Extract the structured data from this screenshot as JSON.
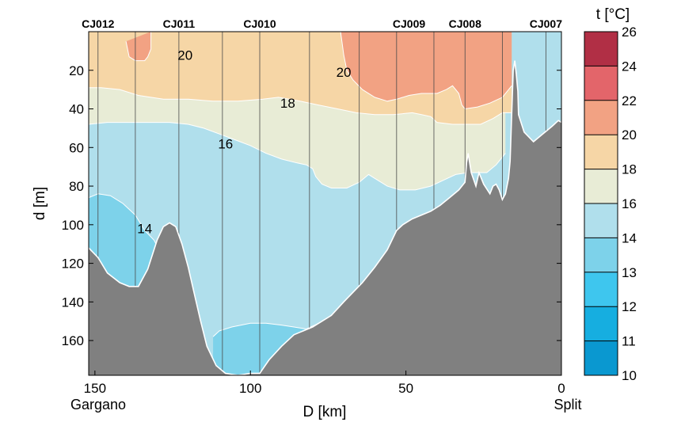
{
  "chart_data": {
    "type": "contour section",
    "xlabel": "D [km]",
    "ylabel": "d [m]",
    "colorbar_label": "t [°C]",
    "xlim": [
      152,
      0
    ],
    "ylim": [
      0,
      178
    ],
    "x_ticks": [
      150,
      100,
      50,
      0
    ],
    "y_ticks": [
      20,
      40,
      60,
      80,
      100,
      120,
      140,
      160
    ],
    "x_end_labels": {
      "left": "Gargano",
      "right": "Split"
    },
    "stations": [
      {
        "name": "CJ012",
        "x": 149
      },
      {
        "name": "CJ011",
        "x": 123
      },
      {
        "name": "CJ010",
        "x": 97
      },
      {
        "name": "CJ009",
        "x": 49
      },
      {
        "name": "CJ008",
        "x": 31
      },
      {
        "name": "CJ007",
        "x": 5
      }
    ],
    "cast_x": [
      149,
      137,
      123,
      109,
      97,
      81,
      65,
      53,
      41,
      31,
      19,
      5
    ],
    "colorbar": {
      "levels": [
        10,
        11,
        12,
        13,
        14,
        16,
        18,
        20,
        22,
        24,
        26
      ],
      "colors": [
        "#0a98d0",
        "#16aee0",
        "#3ec6ee",
        "#7dd2ea",
        "#b0dfec",
        "#e8ecd6",
        "#f6d6a6",
        "#f2a283",
        "#e3656a",
        "#b12f45"
      ]
    },
    "contour_labels": [
      {
        "text": "20",
        "x": 121,
        "y": 12
      },
      {
        "text": "20",
        "x": 70,
        "y": 21
      },
      {
        "text": "18",
        "x": 88,
        "y": 37
      },
      {
        "text": "16",
        "x": 108,
        "y": 58
      },
      {
        "text": "14",
        "x": 134,
        "y": 102
      }
    ],
    "bathymetry": [
      [
        152,
        112
      ],
      [
        149,
        117
      ],
      [
        146,
        125
      ],
      [
        142,
        130
      ],
      [
        139,
        132
      ],
      [
        136,
        132
      ],
      [
        133,
        123
      ],
      [
        130,
        108
      ],
      [
        128,
        101
      ],
      [
        126,
        99
      ],
      [
        124,
        101
      ],
      [
        122,
        110
      ],
      [
        120,
        122
      ],
      [
        118,
        136
      ],
      [
        116,
        150
      ],
      [
        114,
        163
      ],
      [
        111,
        173
      ],
      [
        108,
        177
      ],
      [
        104,
        178
      ],
      [
        100,
        177
      ],
      [
        97,
        177
      ],
      [
        94,
        170
      ],
      [
        90,
        163
      ],
      [
        86,
        157
      ],
      [
        80,
        153
      ],
      [
        74,
        147
      ],
      [
        70,
        140
      ],
      [
        67,
        135
      ],
      [
        64,
        130
      ],
      [
        60,
        122
      ],
      [
        56,
        113
      ],
      [
        53,
        103
      ],
      [
        51,
        100
      ],
      [
        48,
        97
      ],
      [
        45,
        95
      ],
      [
        42,
        93
      ],
      [
        39,
        90
      ],
      [
        36,
        86
      ],
      [
        33,
        82
      ],
      [
        31,
        78
      ],
      [
        30.5,
        68
      ],
      [
        30,
        63
      ],
      [
        29,
        73
      ],
      [
        27.5,
        80
      ],
      [
        26.5,
        73
      ],
      [
        25,
        79
      ],
      [
        23,
        84
      ],
      [
        22,
        80
      ],
      [
        21,
        79
      ],
      [
        20,
        82
      ],
      [
        19,
        87
      ],
      [
        18,
        84
      ],
      [
        17,
        76
      ],
      [
        16.5,
        67
      ],
      [
        16,
        43
      ],
      [
        15.5,
        20
      ],
      [
        15,
        15
      ],
      [
        14.5,
        22
      ],
      [
        14,
        31
      ],
      [
        13.8,
        43
      ],
      [
        12,
        52
      ],
      [
        9,
        57
      ],
      [
        6,
        53
      ],
      [
        3,
        49
      ],
      [
        1,
        46
      ],
      [
        0,
        47
      ]
    ],
    "isotherms": [
      {
        "value": 20,
        "left_x": 140,
        "points": [
          [
            140,
            5
          ],
          [
            139,
            13
          ],
          [
            137,
            15
          ],
          [
            134,
            15
          ],
          [
            133,
            13
          ],
          [
            132,
            9
          ],
          [
            132,
            0
          ]
        ]
      },
      {
        "value": 20,
        "right_x": 16,
        "points": [
          [
            71,
            0
          ],
          [
            70,
            12
          ],
          [
            69,
            20
          ],
          [
            67,
            25
          ],
          [
            64,
            30
          ],
          [
            60,
            34
          ],
          [
            56,
            36
          ],
          [
            53,
            35
          ],
          [
            49,
            33
          ],
          [
            45,
            32
          ],
          [
            40,
            32
          ],
          [
            37,
            30
          ],
          [
            35,
            28
          ],
          [
            33,
            32
          ],
          [
            32,
            38
          ],
          [
            31,
            40
          ],
          [
            27,
            39
          ],
          [
            23,
            37
          ],
          [
            19,
            34
          ],
          [
            16,
            28
          ]
        ]
      },
      {
        "value": 18,
        "right_x": 16,
        "points": [
          [
            152,
            29
          ],
          [
            148,
            29
          ],
          [
            142,
            30
          ],
          [
            136,
            33
          ],
          [
            128,
            35
          ],
          [
            120,
            35
          ],
          [
            112,
            36
          ],
          [
            104,
            36
          ],
          [
            96,
            35
          ],
          [
            91,
            34
          ],
          [
            84,
            36
          ],
          [
            78,
            38
          ],
          [
            72,
            40
          ],
          [
            66,
            42
          ],
          [
            60,
            43
          ],
          [
            54,
            43
          ],
          [
            48,
            42
          ],
          [
            45,
            43
          ],
          [
            42,
            44
          ],
          [
            40,
            47
          ],
          [
            35,
            48
          ],
          [
            30,
            48
          ],
          [
            26,
            48
          ],
          [
            22,
            45
          ],
          [
            19,
            42
          ],
          [
            16,
            42
          ]
        ]
      },
      {
        "value": 16,
        "right_x": 18,
        "points": [
          [
            152,
            48
          ],
          [
            146,
            47
          ],
          [
            140,
            47
          ],
          [
            133,
            47
          ],
          [
            126,
            47
          ],
          [
            120,
            48
          ],
          [
            115,
            50
          ],
          [
            110,
            53
          ],
          [
            105,
            56
          ],
          [
            100,
            59
          ],
          [
            95,
            63
          ],
          [
            90,
            66
          ],
          [
            85,
            68
          ],
          [
            82,
            69
          ],
          [
            80,
            71
          ],
          [
            79,
            75
          ],
          [
            77,
            79
          ],
          [
            74,
            81
          ],
          [
            69,
            81
          ],
          [
            65,
            78
          ],
          [
            62,
            74
          ],
          [
            60,
            76
          ],
          [
            56,
            80
          ],
          [
            52,
            82
          ],
          [
            47,
            82
          ],
          [
            42,
            80
          ],
          [
            38,
            77
          ],
          [
            34,
            74
          ],
          [
            30,
            73
          ],
          [
            27,
            73
          ],
          [
            24,
            73
          ],
          [
            21,
            69
          ],
          [
            18,
            63
          ]
        ]
      },
      {
        "value": 14,
        "left_x": 152,
        "points": [
          [
            152,
            86
          ],
          [
            149,
            84
          ],
          [
            145,
            85
          ],
          [
            141,
            89
          ],
          [
            137,
            95
          ],
          [
            134,
            103
          ],
          [
            131,
            108
          ],
          [
            129,
            114
          ],
          [
            127,
            117
          ]
        ]
      },
      {
        "value": 14,
        "right_x": 64,
        "points": [
          [
            112,
            158
          ],
          [
            110,
            155
          ],
          [
            106,
            153
          ],
          [
            103,
            152
          ],
          [
            100,
            151
          ],
          [
            95,
            151
          ],
          [
            90,
            152
          ],
          [
            86,
            153
          ],
          [
            82,
            154
          ],
          [
            78,
            151
          ],
          [
            74,
            148
          ],
          [
            70,
            144
          ],
          [
            66,
            140
          ],
          [
            64,
            138
          ]
        ]
      }
    ]
  }
}
